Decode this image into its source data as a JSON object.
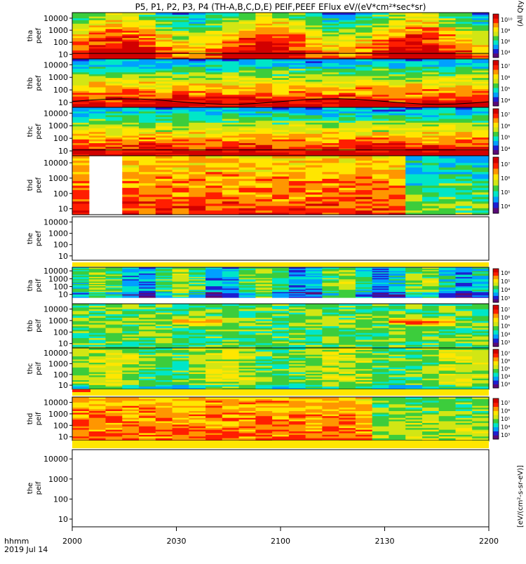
{
  "chart_data": {
    "type": "heatmap",
    "title": "P5, P1, P2, P3, P4 (TH-A,B,C,D,E) PEIF,PEEF EFlux eV/(eV*cm²*sec*sr)",
    "x_axis": {
      "label": "hhmm",
      "date": "2019 Jul 14",
      "range": [
        "2000",
        "2200"
      ],
      "ticks": [
        "2000",
        "2030",
        "2100",
        "2130",
        "2200"
      ]
    },
    "y_scale": "log",
    "y_range_eV": [
      7,
      30000
    ],
    "y_ticks": [
      "10",
      "100",
      "1000",
      "10000"
    ],
    "colorbar_label": "[eV/(cm²-s-sr-eV)]",
    "colorbar_label_clipped": "(All Qty)",
    "colormap": [
      "#ffffff",
      "#5a0a78",
      "#1e1ed2",
      "#00a0ff",
      "#00e6c8",
      "#3ccd3c",
      "#d2e614",
      "#ffe600",
      "#ff9600",
      "#ff1e00",
      "#d20000"
    ],
    "panels": [
      {
        "probe": "tha",
        "species": "peef",
        "label": "tha peef",
        "has_data": true,
        "base": "elec_a",
        "colorbar_ticks": [
          "10⁴",
          "10⁶",
          "10⁸",
          "10¹⁰"
        ],
        "sc_potential": true
      },
      {
        "probe": "thb",
        "species": "peef",
        "label": "thb peef",
        "has_data": true,
        "base": "elec",
        "colorbar_ticks": [
          "10⁴",
          "10⁵",
          "10⁶",
          "10⁷"
        ],
        "sc_potential": true
      },
      {
        "probe": "thc",
        "species": "peef",
        "label": "thc peef",
        "has_data": true,
        "base": "elec",
        "colorbar_ticks": [
          "10⁴",
          "10⁵",
          "10⁶",
          "10⁷"
        ],
        "sc_potential": true
      },
      {
        "probe": "thd",
        "species": "peef",
        "label": "thd peef",
        "has_data": true,
        "base": "elec_d",
        "colorbar_ticks": [
          "10⁴",
          "10⁵",
          "10⁶",
          "10⁷"
        ],
        "sc_potential": false,
        "data_gap": [
          "2005",
          "2015"
        ]
      },
      {
        "probe": "the",
        "species": "peef",
        "label": "the peef",
        "has_data": false
      },
      {
        "probe": "tha",
        "species": "peif",
        "label": "tha peif",
        "has_data": true,
        "base": "ion_a",
        "colorbar_ticks": [
          "10³",
          "10⁴",
          "10⁵",
          "10⁶"
        ]
      },
      {
        "probe": "thb",
        "species": "peif",
        "label": "thb peif",
        "has_data": true,
        "base": "ion_b",
        "colorbar_ticks": [
          "10³",
          "10⁴",
          "10⁵",
          "10⁶",
          "10⁷"
        ]
      },
      {
        "probe": "thc",
        "species": "peif",
        "label": "thc peif",
        "has_data": true,
        "base": "ion_c",
        "colorbar_ticks": [
          "10³",
          "10⁴",
          "10⁵",
          "10⁶",
          "10⁷"
        ]
      },
      {
        "probe": "thd",
        "species": "peif",
        "label": "thd peif",
        "has_data": true,
        "base": "ion_d",
        "colorbar_ticks": [
          "10³",
          "10⁴",
          "10⁵",
          "10⁶",
          "10⁷"
        ]
      },
      {
        "probe": "the",
        "species": "peif",
        "label": "the peif",
        "has_data": false
      }
    ]
  }
}
